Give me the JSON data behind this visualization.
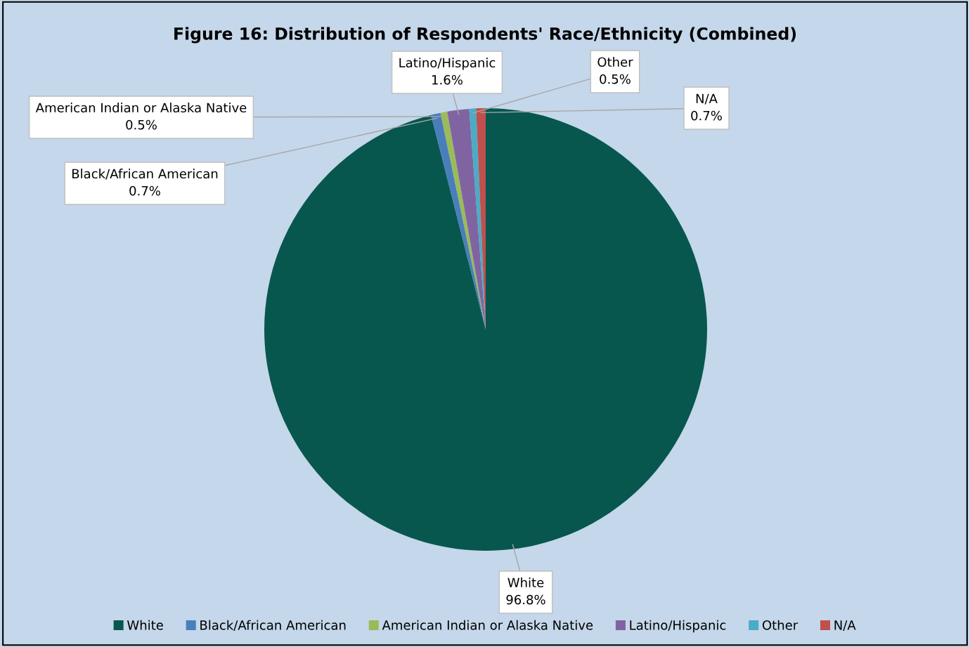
{
  "chart_data": {
    "type": "pie",
    "title": "Figure 16: Distribution of Respondents' Race/Ethnicity (Combined)",
    "categories": [
      "White",
      "Black/African American",
      "American Indian or Alaska Native",
      "Latino/Hispanic",
      "Other",
      "N/A"
    ],
    "values": [
      96.8,
      0.7,
      0.5,
      1.6,
      0.5,
      0.7
    ],
    "colors": [
      "#07574f",
      "#4a7ebb",
      "#9bbb59",
      "#8064a2",
      "#4bacc6",
      "#c0504d"
    ],
    "value_labels": [
      "96.8%",
      "0.7%",
      "0.5%",
      "1.6%",
      "0.5%",
      "0.7%"
    ],
    "legend": "bottom"
  }
}
